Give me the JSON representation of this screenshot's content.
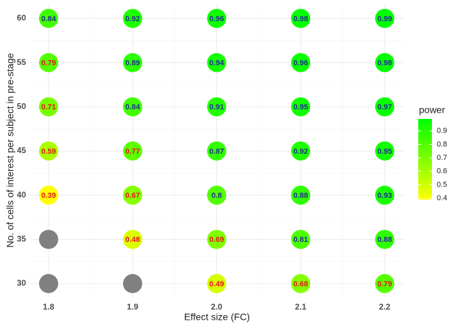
{
  "chart_data": {
    "type": "dot-matrix",
    "x_label": "Effect size (FC)",
    "y_label": "No. of cells of interest per subject in pre-stage",
    "x_categories": [
      "1.8",
      "1.9",
      "2.0",
      "2.1",
      "2.2"
    ],
    "y_categories": [
      "30",
      "35",
      "40",
      "45",
      "50",
      "55",
      "60"
    ],
    "values": [
      [
        null,
        null,
        0.49,
        0.68,
        0.79
      ],
      [
        null,
        0.48,
        0.69,
        0.81,
        0.88
      ],
      [
        0.39,
        0.67,
        0.8,
        0.88,
        0.93
      ],
      [
        0.59,
        0.77,
        0.87,
        0.92,
        0.95
      ],
      [
        0.71,
        0.84,
        0.91,
        0.95,
        0.97
      ],
      [
        0.79,
        0.89,
        0.94,
        0.96,
        0.98
      ],
      [
        0.84,
        0.92,
        0.96,
        0.98,
        0.99
      ]
    ],
    "na_color": "#808080",
    "label_threshold": 0.8,
    "label_colors": {
      "below": "#e8111b",
      "above": "#1f2f8f"
    },
    "colorbar": {
      "title": "power",
      "lim": [
        0.39,
        0.99
      ],
      "ticks": [
        0.4,
        0.5,
        0.6,
        0.7,
        0.8,
        0.9
      ],
      "colors": [
        "#ffff00",
        "#00ff00"
      ]
    },
    "grid": true
  }
}
